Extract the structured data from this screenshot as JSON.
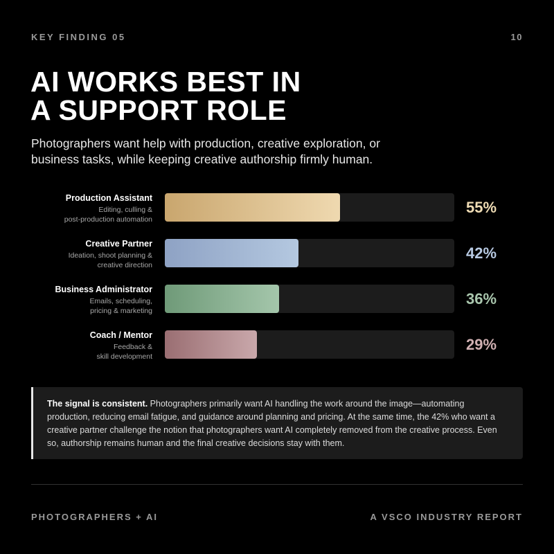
{
  "header": {
    "kicker": "KEY FINDING 05",
    "page_number": "10"
  },
  "title_line1": "AI WORKS BEST IN",
  "title_line2": "A SUPPORT ROLE",
  "subtitle": "Photographers want help with production, creative exploration, or business tasks, while keeping creative authorship firmly human.",
  "chart_data": {
    "type": "bar",
    "orientation": "horizontal",
    "xlim": [
      0,
      91
    ],
    "grid": false,
    "categories": [
      "Production Assistant",
      "Creative Partner",
      "Business Administrator",
      "Coach / Mentor"
    ],
    "descriptions": [
      [
        "Editing, culling &",
        "post-production automation"
      ],
      [
        "Ideation, shoot planning &",
        "creative direction"
      ],
      [
        "Emails, scheduling,",
        "pricing & marketing"
      ],
      [
        "Feedback &",
        "skill development"
      ]
    ],
    "values": [
      55,
      42,
      36,
      29
    ],
    "labels": [
      "55%",
      "42%",
      "36%",
      "29%"
    ],
    "colors": [
      [
        "#c9a66e",
        "#efd9b0"
      ],
      [
        "#8ea2c4",
        "#b4c8e0"
      ],
      [
        "#6f9a78",
        "#a4c6ab"
      ],
      [
        "#9a6e72",
        "#c9a8ab"
      ]
    ],
    "label_colors": [
      "#efdcb4",
      "#b7c9e2",
      "#a9c6ad",
      "#d0b0b2"
    ]
  },
  "callout": {
    "lead": "The signal is consistent.",
    "body": " Photographers primarily want AI handling the work around the image—automating production, reducing email fatigue, and guidance around planning and pricing. At the same time, the 42% who want a creative partner challenge the notion that photographers want AI completely removed from the creative process. Even so, authorship remains human and the final creative decisions stay with them."
  },
  "footer": {
    "left": "PHOTOGRAPHERS + AI",
    "right": "A VSCO INDUSTRY REPORT"
  }
}
